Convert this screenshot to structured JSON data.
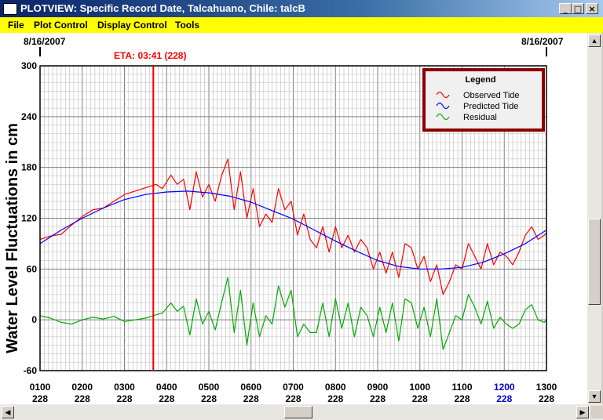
{
  "window": {
    "title": "PLOTVIEW: Specific Record Date, Talcahuano, Chile: talcB",
    "min_symbol": "_",
    "max_symbol": "□",
    "close_symbol": "×"
  },
  "menu": [
    "File",
    "Plot Control",
    "Display Control",
    "Tools"
  ],
  "plot": {
    "start_date": "8/16/2007",
    "end_date": "8/16/2007",
    "eta_label": "ETA: 03:41 (228)",
    "eta_time": 3.683,
    "eta_color": "#ff0000"
  },
  "legend": {
    "title": "Legend",
    "border_color": "#8b0000"
  },
  "chart_data": {
    "type": "line",
    "ylabel": "Water Level Fluctuations in cm",
    "ylim": [
      -60,
      300
    ],
    "yticks": [
      -60,
      0,
      60,
      120,
      180,
      240,
      300
    ],
    "xlim": [
      1,
      13
    ],
    "xticks": [
      {
        "x": 1,
        "time": "0100",
        "day": "228",
        "highlight": false
      },
      {
        "x": 2,
        "time": "0200",
        "day": "228",
        "highlight": false
      },
      {
        "x": 3,
        "time": "0300",
        "day": "228",
        "highlight": false
      },
      {
        "x": 4,
        "time": "0400",
        "day": "228",
        "highlight": false
      },
      {
        "x": 5,
        "time": "0500",
        "day": "228",
        "highlight": false
      },
      {
        "x": 6,
        "time": "0600",
        "day": "228",
        "highlight": false
      },
      {
        "x": 7,
        "time": "0700",
        "day": "228",
        "highlight": false
      },
      {
        "x": 8,
        "time": "0800",
        "day": "228",
        "highlight": false
      },
      {
        "x": 9,
        "time": "0900",
        "day": "228",
        "highlight": false
      },
      {
        "x": 10,
        "time": "1000",
        "day": "228",
        "highlight": false
      },
      {
        "x": 11,
        "time": "1100",
        "day": "228",
        "highlight": false
      },
      {
        "x": 12,
        "time": "1200",
        "day": "228",
        "highlight": true
      },
      {
        "x": 13,
        "time": "1300",
        "day": "228",
        "highlight": false
      }
    ],
    "highlight_color": "#0000cc",
    "series": [
      {
        "name": "Observed Tide",
        "color": "#ff0000",
        "x": [
          1,
          1.25,
          1.5,
          1.75,
          2,
          2.25,
          2.5,
          2.75,
          3,
          3.25,
          3.5,
          3.75,
          3.9,
          4.1,
          4.25,
          4.4,
          4.55,
          4.7,
          4.85,
          5,
          5.15,
          5.3,
          5.45,
          5.6,
          5.75,
          5.9,
          6.05,
          6.2,
          6.35,
          6.5,
          6.65,
          6.8,
          6.95,
          7.1,
          7.25,
          7.4,
          7.55,
          7.7,
          7.85,
          8,
          8.15,
          8.3,
          8.45,
          8.6,
          8.75,
          8.9,
          9.05,
          9.2,
          9.35,
          9.5,
          9.65,
          9.8,
          9.95,
          10.1,
          10.25,
          10.4,
          10.55,
          10.7,
          10.85,
          11,
          11.15,
          11.3,
          11.45,
          11.6,
          11.75,
          11.9,
          12.05,
          12.2,
          12.35,
          12.5,
          12.65,
          12.8,
          12.95,
          13
        ],
        "values": [
          95,
          99,
          101,
          112,
          122,
          130,
          132,
          140,
          148,
          152,
          156,
          160,
          155,
          171,
          160,
          166,
          130,
          175,
          145,
          160,
          140,
          170,
          190,
          130,
          175,
          120,
          155,
          110,
          125,
          115,
          155,
          130,
          140,
          100,
          125,
          95,
          85,
          110,
          80,
          110,
          85,
          100,
          80,
          95,
          85,
          60,
          80,
          55,
          80,
          50,
          90,
          85,
          60,
          75,
          45,
          65,
          30,
          45,
          65,
          60,
          90,
          75,
          60,
          90,
          65,
          80,
          75,
          65,
          80,
          100,
          110,
          95,
          100,
          103
        ]
      },
      {
        "name": "Predicted Tide",
        "color": "#0000ff",
        "x": [
          1,
          1.5,
          2,
          2.5,
          3,
          3.5,
          4,
          4.5,
          5,
          5.5,
          6,
          6.5,
          7,
          7.5,
          8,
          8.5,
          9,
          9.5,
          10,
          10.5,
          11,
          11.5,
          12,
          12.5,
          13
        ],
        "values": [
          90,
          106,
          120,
          132,
          142,
          148,
          151,
          152,
          150,
          146,
          139,
          129,
          119,
          106,
          93,
          81,
          70,
          63,
          60,
          60,
          62,
          68,
          78,
          90,
          106
        ]
      },
      {
        "name": "Residual",
        "color": "#00aa00",
        "x": [
          1,
          1.25,
          1.5,
          1.75,
          2,
          2.25,
          2.5,
          2.75,
          3,
          3.25,
          3.5,
          3.75,
          3.9,
          4.1,
          4.25,
          4.4,
          4.55,
          4.7,
          4.85,
          5,
          5.15,
          5.3,
          5.45,
          5.6,
          5.75,
          5.9,
          6.05,
          6.2,
          6.35,
          6.5,
          6.65,
          6.8,
          6.95,
          7.1,
          7.25,
          7.4,
          7.55,
          7.7,
          7.85,
          8,
          8.15,
          8.3,
          8.45,
          8.6,
          8.75,
          8.9,
          9.05,
          9.2,
          9.35,
          9.5,
          9.65,
          9.8,
          9.95,
          10.1,
          10.25,
          10.4,
          10.55,
          10.7,
          10.85,
          11,
          11.15,
          11.3,
          11.45,
          11.6,
          11.75,
          11.9,
          12.05,
          12.2,
          12.35,
          12.5,
          12.65,
          12.8,
          12.95,
          13
        ],
        "values": [
          5,
          2,
          -3,
          -5,
          0,
          3,
          1,
          4,
          -2,
          0,
          2,
          6,
          8,
          20,
          10,
          16,
          -18,
          25,
          -5,
          10,
          -12,
          20,
          50,
          -15,
          35,
          -30,
          20,
          -20,
          5,
          -5,
          40,
          15,
          35,
          -20,
          -5,
          -15,
          -15,
          20,
          -20,
          25,
          -10,
          20,
          -20,
          15,
          5,
          -20,
          15,
          -15,
          20,
          -25,
          25,
          20,
          -10,
          15,
          -20,
          25,
          -35,
          -15,
          5,
          0,
          30,
          15,
          -5,
          22,
          -10,
          3,
          -5,
          -10,
          -5,
          12,
          18,
          0,
          -3,
          0
        ]
      }
    ]
  }
}
